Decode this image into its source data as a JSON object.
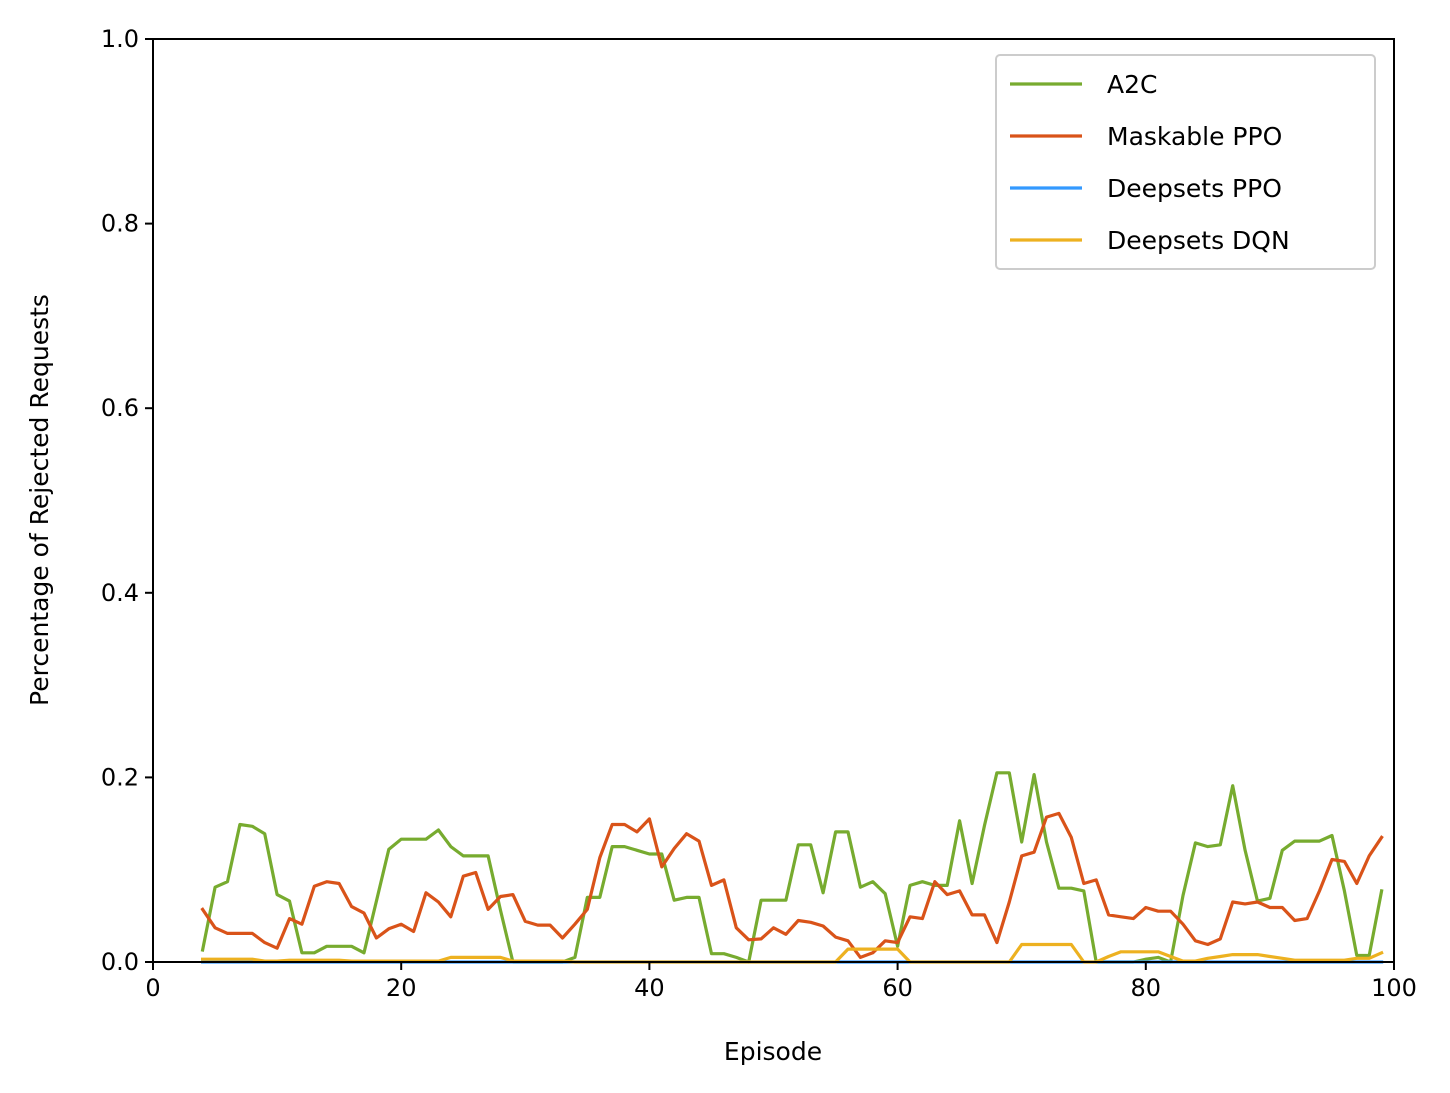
{
  "chart_data": {
    "type": "line",
    "title": "",
    "xlabel": "Episode",
    "ylabel": "Percentage of Rejected Requests",
    "xlim": [
      0,
      100
    ],
    "ylim": [
      0,
      1.0
    ],
    "xticks": [
      "0",
      "20",
      "40",
      "60",
      "80",
      "100"
    ],
    "yticks": [
      "0.0",
      "0.2",
      "0.4",
      "0.6",
      "0.8",
      "1.0"
    ],
    "grid": false,
    "legend_position": "top-right",
    "x": [
      4,
      5,
      6,
      7,
      8,
      9,
      10,
      11,
      12,
      13,
      14,
      15,
      16,
      17,
      18,
      19,
      20,
      21,
      22,
      23,
      24,
      25,
      26,
      27,
      28,
      29,
      30,
      31,
      32,
      33,
      34,
      35,
      36,
      37,
      38,
      39,
      40,
      41,
      42,
      43,
      44,
      45,
      46,
      47,
      48,
      49,
      50,
      51,
      52,
      53,
      54,
      55,
      56,
      57,
      58,
      59,
      60,
      61,
      62,
      63,
      64,
      65,
      66,
      67,
      68,
      69,
      70,
      71,
      72,
      73,
      74,
      75,
      76,
      77,
      78,
      79,
      80,
      81,
      82,
      83,
      84,
      85,
      86,
      87,
      88,
      89,
      90,
      91,
      92,
      93,
      94,
      95,
      96,
      97,
      98,
      99
    ],
    "series": [
      {
        "name": "A2C",
        "color": "#77ab2f",
        "values": [
          0.013,
          0.081,
          0.087,
          0.149,
          0.147,
          0.139,
          0.073,
          0.066,
          0.01,
          0.01,
          0.017,
          0.017,
          0.017,
          0.01,
          0.066,
          0.122,
          0.133,
          0.133,
          0.133,
          0.143,
          0.125,
          0.115,
          0.115,
          0.115,
          0.056,
          0.0,
          0.0,
          0.0,
          0.0,
          0.0,
          0.005,
          0.07,
          0.07,
          0.125,
          0.125,
          0.121,
          0.117,
          0.117,
          0.067,
          0.07,
          0.07,
          0.009,
          0.009,
          0.005,
          0.0,
          0.067,
          0.067,
          0.067,
          0.127,
          0.127,
          0.075,
          0.141,
          0.141,
          0.081,
          0.087,
          0.074,
          0.017,
          0.083,
          0.087,
          0.083,
          0.083,
          0.153,
          0.085,
          0.148,
          0.205,
          0.205,
          0.13,
          0.203,
          0.13,
          0.08,
          0.08,
          0.077,
          0.0,
          0.0,
          0.0,
          0.0,
          0.003,
          0.005,
          0.0,
          0.072,
          0.129,
          0.125,
          0.127,
          0.191,
          0.121,
          0.066,
          0.069,
          0.121,
          0.131,
          0.131,
          0.131,
          0.137,
          0.077,
          0.007,
          0.007,
          0.077
        ]
      },
      {
        "name": "Maskable PPO",
        "color": "#d95319",
        "values": [
          0.057,
          0.037,
          0.031,
          0.031,
          0.031,
          0.021,
          0.015,
          0.047,
          0.041,
          0.082,
          0.087,
          0.085,
          0.06,
          0.053,
          0.026,
          0.036,
          0.041,
          0.033,
          0.075,
          0.065,
          0.049,
          0.093,
          0.097,
          0.057,
          0.071,
          0.073,
          0.044,
          0.04,
          0.04,
          0.026,
          0.041,
          0.057,
          0.113,
          0.149,
          0.149,
          0.141,
          0.155,
          0.103,
          0.123,
          0.139,
          0.131,
          0.083,
          0.089,
          0.037,
          0.024,
          0.025,
          0.037,
          0.03,
          0.045,
          0.043,
          0.039,
          0.027,
          0.023,
          0.005,
          0.01,
          0.023,
          0.021,
          0.049,
          0.047,
          0.087,
          0.073,
          0.077,
          0.051,
          0.051,
          0.021,
          0.065,
          0.115,
          0.119,
          0.157,
          0.161,
          0.135,
          0.085,
          0.089,
          0.051,
          0.049,
          0.047,
          0.059,
          0.055,
          0.055,
          0.041,
          0.023,
          0.019,
          0.025,
          0.065,
          0.063,
          0.065,
          0.059,
          0.059,
          0.045,
          0.047,
          0.077,
          0.111,
          0.109,
          0.085,
          0.115,
          0.135
        ]
      },
      {
        "name": "Deepsets PPO",
        "color": "#3399ff",
        "values": [
          0,
          0,
          0,
          0,
          0,
          0,
          0,
          0,
          0,
          0,
          0,
          0,
          0,
          0,
          0,
          0,
          0,
          0,
          0,
          0,
          0,
          0,
          0,
          0,
          0,
          0,
          0,
          0,
          0,
          0,
          0,
          0,
          0,
          0,
          0,
          0,
          0,
          0,
          0,
          0,
          0,
          0,
          0,
          0,
          0,
          0,
          0,
          0,
          0,
          0,
          0,
          0,
          0,
          0,
          0,
          0,
          0,
          0,
          0,
          0,
          0,
          0,
          0,
          0,
          0,
          0,
          0,
          0,
          0,
          0,
          0,
          0,
          0,
          0,
          0,
          0,
          0,
          0,
          0,
          0,
          0,
          0,
          0,
          0,
          0,
          0,
          0,
          0,
          0,
          0,
          0,
          0,
          0,
          0,
          0,
          0
        ]
      },
      {
        "name": "Deepsets DQN",
        "color": "#edb120",
        "values": [
          0.003,
          0.003,
          0.003,
          0.003,
          0.003,
          0.001,
          0.001,
          0.002,
          0.002,
          0.002,
          0.002,
          0.002,
          0.001,
          0.001,
          0.001,
          0.001,
          0.001,
          0.001,
          0.001,
          0.001,
          0.005,
          0.005,
          0.005,
          0.005,
          0.005,
          0.001,
          0.001,
          0.001,
          0.001,
          0.001,
          0.0,
          0.0,
          0.0,
          0.0,
          0.0,
          0.0,
          0.0,
          0.0,
          0.0,
          0.0,
          0.0,
          0.0,
          0.0,
          0.0,
          0.0,
          0.0,
          0.0,
          0.0,
          0.0,
          0.0,
          0.0,
          0.0,
          0.014,
          0.014,
          0.014,
          0.014,
          0.014,
          0.0,
          0.0,
          0.0,
          0.0,
          0.0,
          0.0,
          0.0,
          0.0,
          0.0,
          0.019,
          0.019,
          0.019,
          0.019,
          0.019,
          0.0,
          0.0,
          0.006,
          0.011,
          0.011,
          0.011,
          0.011,
          0.006,
          0.001,
          0.001,
          0.004,
          0.006,
          0.008,
          0.008,
          0.008,
          0.006,
          0.004,
          0.002,
          0.002,
          0.002,
          0.002,
          0.002,
          0.004,
          0.004,
          0.01
        ]
      }
    ]
  }
}
